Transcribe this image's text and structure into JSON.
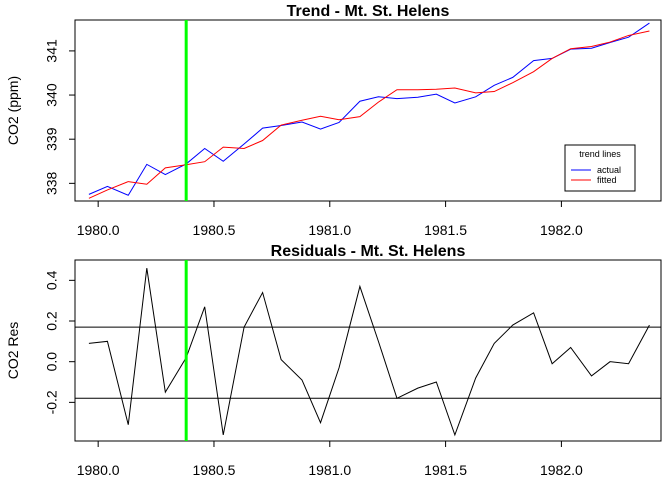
{
  "chart_data": [
    {
      "type": "line",
      "title": "Trend -  Mt. St. Helens",
      "xlabel": "",
      "ylabel": "CO2 (ppm)",
      "xlim": [
        1979.9,
        1982.43
      ],
      "ylim": [
        337.6,
        341.7
      ],
      "xticks": [
        1980.0,
        1980.5,
        1981.0,
        1981.5,
        1982.0
      ],
      "xtick_labels": [
        "1980.0",
        "1980.5",
        "1981.0",
        "1981.5",
        "1982.0"
      ],
      "yticks": [
        338,
        339,
        340,
        341
      ],
      "ytick_labels": [
        "338",
        "339",
        "340",
        "341"
      ],
      "grid": false,
      "legend": {
        "title": "trend lines",
        "placement": "bottom-right",
        "entries": [
          {
            "label": "actual",
            "color": "#0000ff"
          },
          {
            "label": "fitted",
            "color": "#ff0000"
          }
        ]
      },
      "vline": {
        "x": 1980.38,
        "color": "#00ff00"
      },
      "x": [
        1979.96,
        1980.04,
        1980.13,
        1980.21,
        1980.29,
        1980.38,
        1980.46,
        1980.54,
        1980.63,
        1980.71,
        1980.79,
        1980.88,
        1980.96,
        1981.04,
        1981.13,
        1981.21,
        1981.29,
        1981.38,
        1981.46,
        1981.54,
        1981.63,
        1981.71,
        1981.79,
        1981.88,
        1981.96,
        1982.04,
        1982.13,
        1982.21,
        1982.29,
        1982.38
      ],
      "series": [
        {
          "name": "actual",
          "color": "#0000ff",
          "values": [
            337.75,
            337.93,
            337.73,
            338.43,
            338.2,
            338.44,
            338.79,
            338.5,
            338.89,
            339.25,
            339.31,
            339.39,
            339.23,
            339.38,
            339.86,
            339.96,
            339.92,
            339.95,
            340.02,
            339.82,
            339.96,
            340.22,
            340.4,
            340.78,
            340.83,
            341.04,
            341.06,
            341.19,
            341.31,
            341.63
          ]
        },
        {
          "name": "fitted",
          "color": "#ff0000",
          "values": [
            337.66,
            337.85,
            338.04,
            337.98,
            338.35,
            338.42,
            338.49,
            338.82,
            338.79,
            338.97,
            339.32,
            339.43,
            339.52,
            339.44,
            339.51,
            339.84,
            340.12,
            340.12,
            340.13,
            340.16,
            340.05,
            340.08,
            340.28,
            340.53,
            340.83,
            341.05,
            341.1,
            341.2,
            341.35,
            341.45
          ]
        }
      ]
    },
    {
      "type": "line",
      "title": "Residuals -  Mt. St. Helens",
      "xlabel": "",
      "ylabel": "CO2 Res",
      "xlim": [
        1979.9,
        1982.43
      ],
      "ylim": [
        -0.39,
        0.5
      ],
      "xticks": [
        1980.0,
        1980.5,
        1981.0,
        1981.5,
        1982.0
      ],
      "xtick_labels": [
        "1980.0",
        "1980.5",
        "1981.0",
        "1981.5",
        "1982.0"
      ],
      "yticks": [
        -0.2,
        0.0,
        0.2,
        0.4
      ],
      "ytick_labels": [
        "-0.2",
        "0.0",
        "0.2",
        "0.4"
      ],
      "grid": false,
      "hlines": [
        0.17,
        -0.18
      ],
      "vline": {
        "x": 1980.38,
        "color": "#00ff00"
      },
      "x": [
        1979.96,
        1980.04,
        1980.13,
        1980.21,
        1980.29,
        1980.38,
        1980.46,
        1980.54,
        1980.63,
        1980.71,
        1980.79,
        1980.88,
        1980.96,
        1981.04,
        1981.13,
        1981.21,
        1981.29,
        1981.38,
        1981.46,
        1981.54,
        1981.63,
        1981.71,
        1981.79,
        1981.88,
        1981.96,
        1982.04,
        1982.13,
        1982.21,
        1982.29,
        1982.38
      ],
      "series": [
        {
          "color": "#000000",
          "values": [
            0.09,
            0.1,
            -0.31,
            0.46,
            -0.15,
            0.02,
            0.27,
            -0.36,
            0.17,
            0.34,
            0.01,
            -0.09,
            -0.3,
            -0.03,
            0.37,
            0.1,
            -0.18,
            -0.13,
            -0.1,
            -0.36,
            -0.08,
            0.09,
            0.18,
            0.24,
            -0.01,
            0.07,
            -0.07,
            0.0,
            -0.01,
            0.18
          ]
        }
      ]
    }
  ]
}
